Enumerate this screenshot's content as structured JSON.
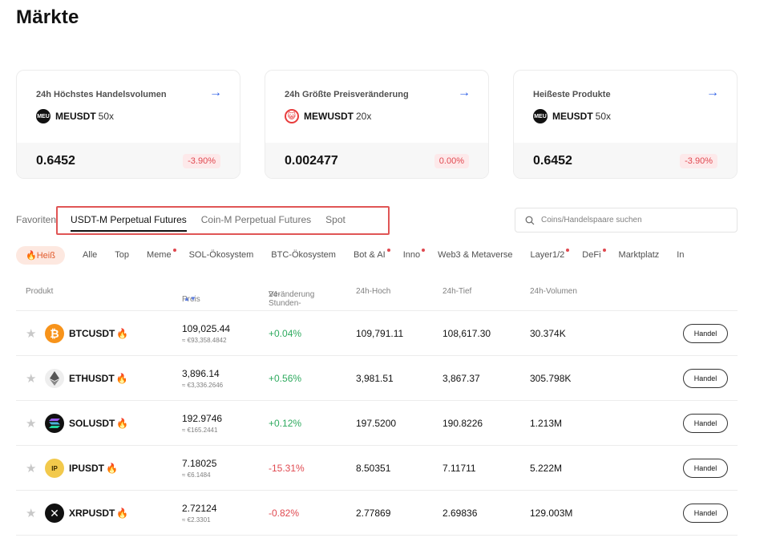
{
  "page": {
    "title": "Märkte"
  },
  "cards": [
    {
      "title": "24h Höchstes Handelsvolumen",
      "icon": "meu-icon",
      "icon_text": "MEU",
      "symbol": "MEUSDT",
      "leverage": "50x",
      "price": "0.6452",
      "change": "-3.90%"
    },
    {
      "title": "24h Größte Preisveränderung",
      "icon": "mew-icon",
      "icon_text": "😺",
      "symbol": "MEWUSDT",
      "leverage": "20x",
      "price": "0.002477",
      "change": "0.00%"
    },
    {
      "title": "Heißeste Produkte",
      "icon": "meu-icon",
      "icon_text": "MEU",
      "symbol": "MEUSDT",
      "leverage": "50x",
      "price": "0.6452",
      "change": "-3.90%"
    }
  ],
  "tabs": [
    "Favoriten",
    "USDT-M Perpetual Futures",
    "Coin-M Perpetual Futures",
    "Spot"
  ],
  "active_tab": "USDT-M Perpetual Futures",
  "search": {
    "placeholder": "Coins/Handelspaare suchen"
  },
  "filters": [
    {
      "label": "Heiß",
      "active": true,
      "dot": false
    },
    {
      "label": "Alle",
      "active": false,
      "dot": false
    },
    {
      "label": "Top",
      "active": false,
      "dot": false
    },
    {
      "label": "Meme",
      "active": false,
      "dot": true
    },
    {
      "label": "SOL-Ökosystem",
      "active": false,
      "dot": false
    },
    {
      "label": "BTC-Ökosystem",
      "active": false,
      "dot": false
    },
    {
      "label": "Bot & AI",
      "active": false,
      "dot": true
    },
    {
      "label": "Inno",
      "active": false,
      "dot": true
    },
    {
      "label": "Web3 & Metaverse",
      "active": false,
      "dot": false
    },
    {
      "label": "Layer1/2",
      "active": false,
      "dot": true
    },
    {
      "label": "DeFi",
      "active": false,
      "dot": true
    },
    {
      "label": "Marktplatz",
      "active": false,
      "dot": false
    },
    {
      "label": "In",
      "active": false,
      "dot": false
    }
  ],
  "table": {
    "headers": {
      "product": "Produkt",
      "price": "Preis",
      "change_line1": "24-Stunden-",
      "change_line2": "Veränderung",
      "high": "24h-Hoch",
      "low": "24h-Tief",
      "volume": "24h-Volumen"
    },
    "trade_label": "Handel",
    "rows": [
      {
        "symbol": "BTCUSDT",
        "icon": "bitcoin-icon",
        "price": "109,025.44",
        "price_eur": "≈ €93,358.4842",
        "change": "+0.04%",
        "dir": "up",
        "high": "109,791.11",
        "low": "108,617.30",
        "volume": "30.374K"
      },
      {
        "symbol": "ETHUSDT",
        "icon": "ethereum-icon",
        "price": "3,896.14",
        "price_eur": "≈ €3,336.2646",
        "change": "+0.56%",
        "dir": "up",
        "high": "3,981.51",
        "low": "3,867.37",
        "volume": "305.798K"
      },
      {
        "symbol": "SOLUSDT",
        "icon": "solana-icon",
        "price": "192.9746",
        "price_eur": "≈ €165.2441",
        "change": "+0.12%",
        "dir": "up",
        "high": "197.5200",
        "low": "190.8226",
        "volume": "1.213M"
      },
      {
        "symbol": "IPUSDT",
        "icon": "ip-icon",
        "price": "7.18025",
        "price_eur": "≈ €6.1484",
        "change": "-15.31%",
        "dir": "down",
        "high": "8.50351",
        "low": "7.11711",
        "volume": "5.222M"
      },
      {
        "symbol": "XRPUSDT",
        "icon": "xrp-icon",
        "price": "2.72124",
        "price_eur": "≈ €2.3301",
        "change": "-0.82%",
        "dir": "down",
        "high": "2.77869",
        "low": "2.69836",
        "volume": "129.003M"
      }
    ]
  }
}
